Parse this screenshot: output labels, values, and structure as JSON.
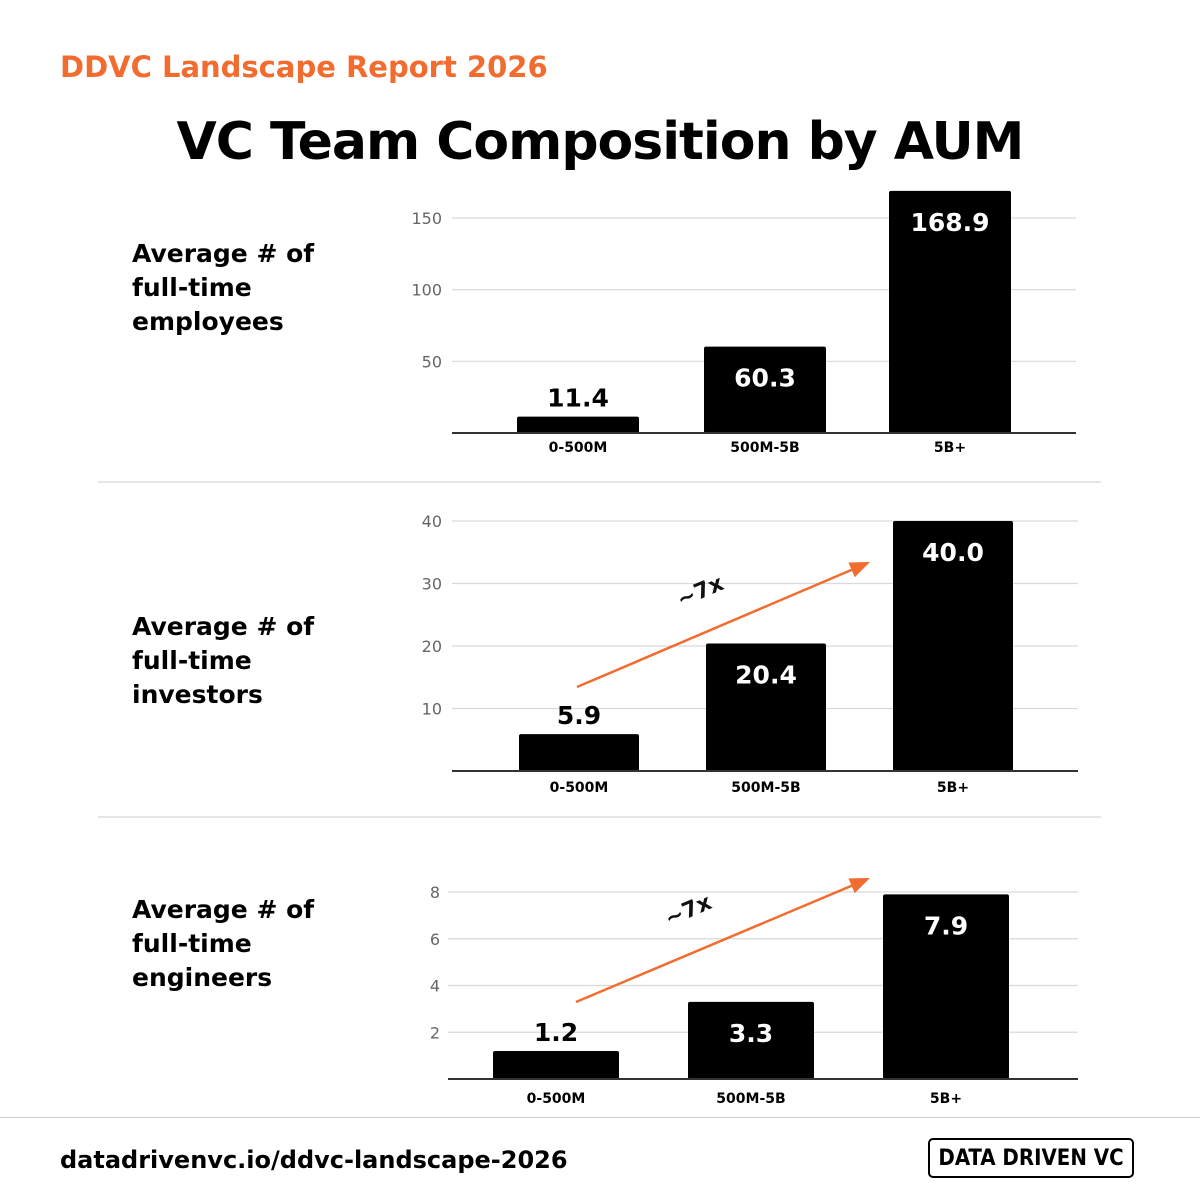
{
  "header": {
    "report_name": "DDVC Landscape Report 2026",
    "title": "VC Team Composition by AUM"
  },
  "footer": {
    "url": "datadrivenvc.io/ddvc-landscape-2026",
    "brand": "DATA DRIVEN VC"
  },
  "colors": {
    "accent": "#F26B2F",
    "bar": "#000000",
    "grid": "#d9d9d9"
  },
  "chart_data": [
    {
      "type": "bar",
      "label_lines": [
        "Average # of",
        "full-time",
        "employees"
      ],
      "categories": [
        "0-500M",
        "500M-5B",
        "5B+"
      ],
      "values": [
        11.4,
        60.3,
        168.9
      ],
      "value_labels": [
        "11.4",
        "60.3",
        "168.9"
      ],
      "yticks": [
        "50",
        "100",
        "150"
      ],
      "ylim": [
        0,
        150
      ],
      "grid": true
    },
    {
      "type": "bar",
      "label_lines": [
        "Average # of",
        "full-time",
        "investors"
      ],
      "categories": [
        "0-500M",
        "500M-5B",
        "5B+"
      ],
      "values": [
        5.9,
        20.4,
        40.0
      ],
      "value_labels": [
        "5.9",
        "20.4",
        "40.0"
      ],
      "yticks": [
        "10",
        "20",
        "30",
        "40"
      ],
      "ylim": [
        0,
        40
      ],
      "grid": true,
      "annotation": "~7x"
    },
    {
      "type": "bar",
      "label_lines": [
        "Average # of",
        "full-time",
        "engineers"
      ],
      "categories": [
        "0-500M",
        "500M-5B",
        "5B+"
      ],
      "values": [
        1.2,
        3.3,
        7.9
      ],
      "value_labels": [
        "1.2",
        "3.3",
        "7.9"
      ],
      "yticks": [
        "2",
        "4",
        "6",
        "8"
      ],
      "ylim": [
        0,
        8
      ],
      "grid": true,
      "annotation": "~7x"
    }
  ]
}
